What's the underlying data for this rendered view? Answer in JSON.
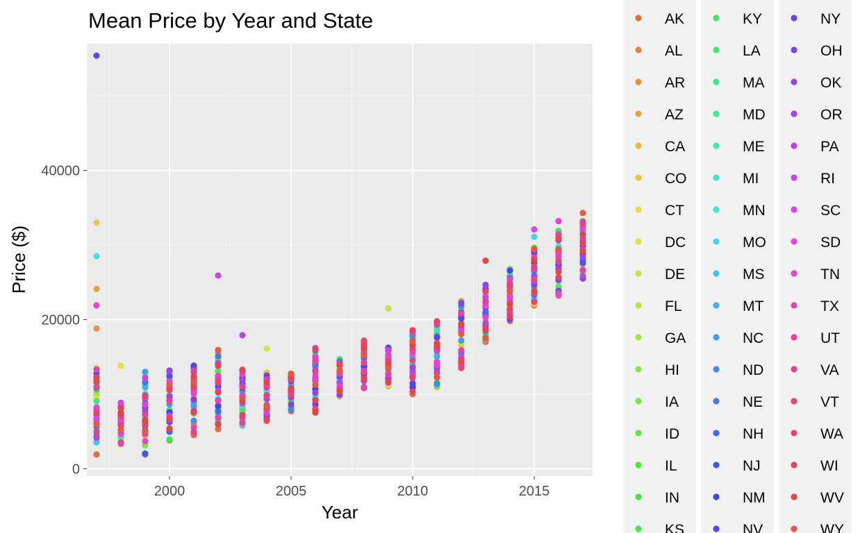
{
  "chart_data": {
    "type": "scatter",
    "title": "Mean Price by Year and State",
    "xlabel": "Year",
    "ylabel": "Price ($)",
    "xlim": [
      1996.6,
      2017.4
    ],
    "ylim": [
      -1000,
      57000
    ],
    "x_ticks": [
      2000,
      2005,
      2010,
      2015
    ],
    "y_ticks": [
      0,
      20000,
      40000
    ],
    "grid": true,
    "legend_position": "right",
    "legend_columns": 3,
    "legend_entries": [
      "AK",
      "AL",
      "AR",
      "AZ",
      "CA",
      "CO",
      "CT",
      "DC",
      "DE",
      "FL",
      "GA",
      "HI",
      "IA",
      "ID",
      "IL",
      "IN",
      "KS",
      "KY",
      "LA",
      "MA",
      "MD",
      "ME",
      "MI",
      "MN",
      "MO",
      "MS",
      "MT",
      "NC",
      "ND",
      "NE",
      "NH",
      "NJ",
      "NM",
      "NV",
      "NY",
      "OH",
      "OK",
      "OR",
      "PA",
      "RI",
      "SC",
      "SD",
      "TN",
      "TX",
      "UT",
      "VA",
      "VT",
      "WA",
      "WI",
      "WV",
      "WY"
    ],
    "year_ranges": [
      {
        "year": 1997,
        "min": 1900,
        "max": 55400
      },
      {
        "year": 1998,
        "min": 3300,
        "max": 13800
      },
      {
        "year": 1999,
        "min": 1900,
        "max": 13000
      },
      {
        "year": 2000,
        "min": 3800,
        "max": 13300
      },
      {
        "year": 2001,
        "min": 4500,
        "max": 13900
      },
      {
        "year": 2002,
        "min": 5300,
        "max": 25900
      },
      {
        "year": 2003,
        "min": 5800,
        "max": 17900
      },
      {
        "year": 2004,
        "min": 6400,
        "max": 16100
      },
      {
        "year": 2005,
        "min": 7700,
        "max": 12900
      },
      {
        "year": 2006,
        "min": 7500,
        "max": 16500
      },
      {
        "year": 2007,
        "min": 9700,
        "max": 14800
      },
      {
        "year": 2008,
        "min": 10800,
        "max": 17200
      },
      {
        "year": 2009,
        "min": 11100,
        "max": 21500
      },
      {
        "year": 2010,
        "min": 10000,
        "max": 18800
      },
      {
        "year": 2011,
        "min": 11000,
        "max": 20300
      },
      {
        "year": 2012,
        "min": 13500,
        "max": 23200
      },
      {
        "year": 2013,
        "min": 17000,
        "max": 27900
      },
      {
        "year": 2014,
        "min": 19800,
        "max": 27100
      },
      {
        "year": 2015,
        "min": 21900,
        "max": 32100
      },
      {
        "year": 2016,
        "min": 23200,
        "max": 33200
      },
      {
        "year": 2017,
        "min": 25500,
        "max": 34300
      }
    ],
    "outliers": [
      {
        "year": 1997,
        "state": "NY",
        "value": 55400
      },
      {
        "year": 1997,
        "state": "CO",
        "value": 33000
      },
      {
        "year": 1997,
        "state": "MN",
        "value": 28500
      },
      {
        "year": 1997,
        "state": "AZ",
        "value": 24100
      },
      {
        "year": 1997,
        "state": "TN",
        "value": 21900
      },
      {
        "year": 1997,
        "state": "AR",
        "value": 18800
      },
      {
        "year": 1998,
        "state": "CT",
        "value": 13800
      },
      {
        "year": 2002,
        "state": "RI",
        "value": 25900
      },
      {
        "year": 2003,
        "state": "PA",
        "value": 17900
      },
      {
        "year": 2004,
        "state": "DC",
        "value": 16100
      },
      {
        "year": 2009,
        "state": "DE",
        "value": 21500
      },
      {
        "year": 2013,
        "state": "WV",
        "value": 27900
      },
      {
        "year": 2015,
        "state": "SC",
        "value": 32100
      },
      {
        "year": 2015,
        "state": "MO",
        "value": 31100
      },
      {
        "year": 2016,
        "state": "SD",
        "value": 33200
      },
      {
        "year": 2017,
        "state": "WY",
        "value": 34300
      }
    ]
  }
}
